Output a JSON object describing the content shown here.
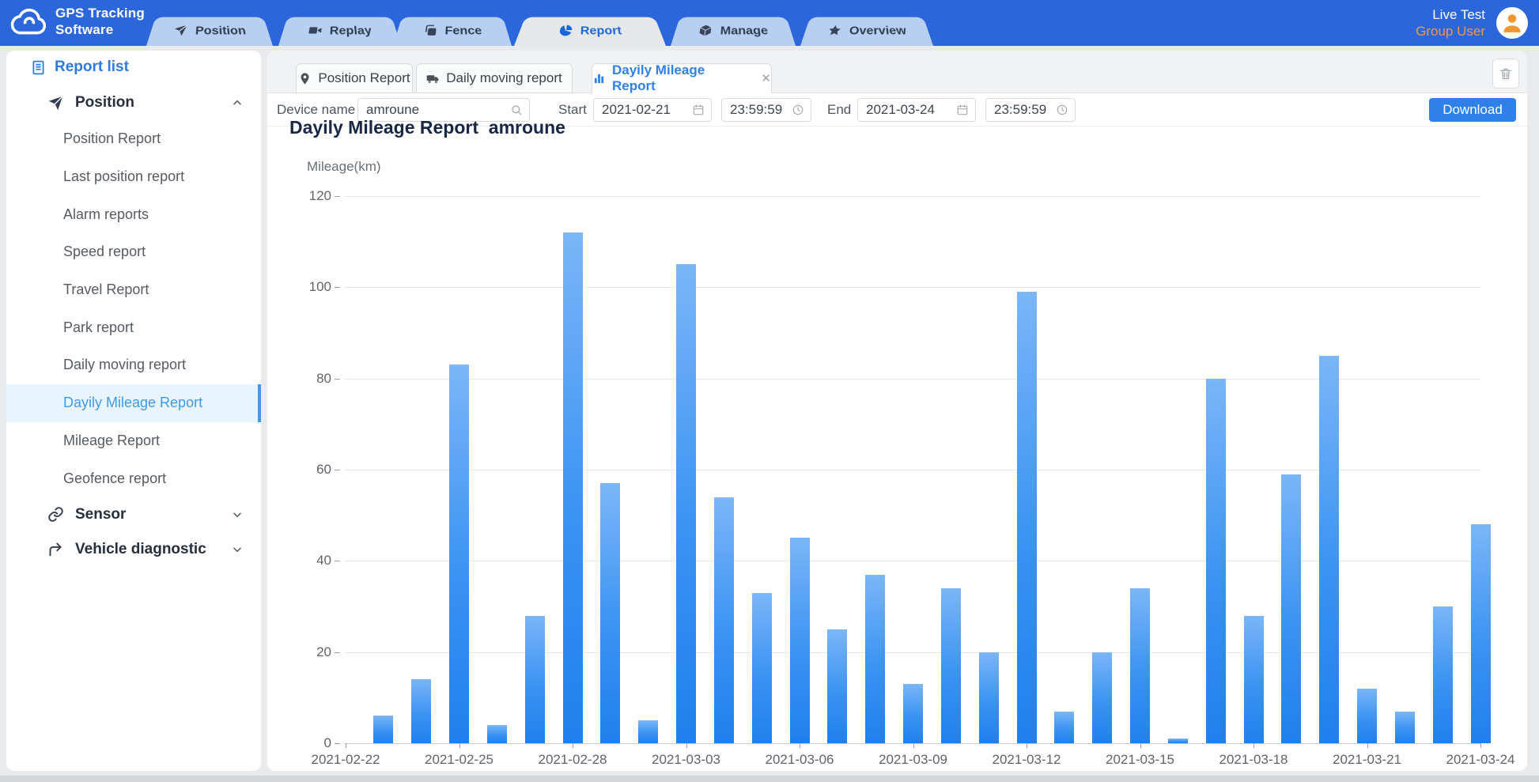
{
  "header": {
    "logo_line1": "GPS Tracking",
    "logo_line2": "Software",
    "nav_tabs": [
      {
        "label": "Position",
        "icon": "send",
        "active": false
      },
      {
        "label": "Replay",
        "icon": "video",
        "active": false
      },
      {
        "label": "Fence",
        "icon": "fence",
        "active": false
      },
      {
        "label": "Report",
        "icon": "pie",
        "active": true
      },
      {
        "label": "Manage",
        "icon": "box",
        "active": false
      },
      {
        "label": "Overview",
        "icon": "star",
        "active": false
      }
    ],
    "user": {
      "name": "Live Test",
      "role": "Group User"
    }
  },
  "sidebar": {
    "title": "Report list",
    "sections": [
      {
        "label": "Position",
        "icon": "send",
        "expanded": true,
        "items": [
          "Position Report",
          "Last position report",
          "Alarm reports",
          "Speed report",
          "Travel Report",
          "Park report",
          "Daily moving report",
          "Dayily Mileage Report",
          "Mileage Report",
          "Geofence report"
        ],
        "selected_item": "Dayily Mileage Report"
      },
      {
        "label": "Sensor",
        "icon": "link",
        "expanded": false,
        "items": []
      },
      {
        "label": "Vehicle diagnostic",
        "icon": "diagnostic",
        "expanded": false,
        "items": []
      }
    ]
  },
  "workspace": {
    "tabs": [
      {
        "label": "Position Report",
        "icon": "pin",
        "active": false,
        "closable": false
      },
      {
        "label": "Daily moving report",
        "icon": "truck",
        "active": false,
        "closable": false
      },
      {
        "label": "Dayily Mileage Report",
        "icon": "bar-chart",
        "active": true,
        "closable": true
      }
    ],
    "close_glyph": "✕",
    "filters": {
      "device_label": "Device name",
      "device_value": "amroune",
      "start_label": "Start",
      "start_date": "2021-02-21",
      "start_time": "23:59:59",
      "end_label": "End",
      "end_date": "2021-03-24",
      "end_time": "23:59:59",
      "download_label": "Download"
    }
  },
  "chart_data": {
    "type": "bar",
    "title": "Dayily Mileage Report  amroune",
    "ylabel": "Mileage(km)",
    "ylim": [
      0,
      120
    ],
    "ytick_step": 20,
    "grid": true,
    "legend": "none",
    "categories": [
      "2021-02-22",
      "2021-02-23",
      "2021-02-24",
      "2021-02-25",
      "2021-02-26",
      "2021-02-27",
      "2021-02-28",
      "2021-03-01",
      "2021-03-02",
      "2021-03-03",
      "2021-03-04",
      "2021-03-05",
      "2021-03-06",
      "2021-03-07",
      "2021-03-08",
      "2021-03-09",
      "2021-03-10",
      "2021-03-11",
      "2021-03-12",
      "2021-03-13",
      "2021-03-14",
      "2021-03-15",
      "2021-03-16",
      "2021-03-17",
      "2021-03-18",
      "2021-03-19",
      "2021-03-20",
      "2021-03-21",
      "2021-03-22",
      "2021-03-23",
      "2021-03-24"
    ],
    "values": [
      0,
      6,
      14,
      83,
      4,
      28,
      112,
      57,
      5,
      105,
      54,
      33,
      45,
      25,
      37,
      13,
      34,
      20,
      99,
      7,
      20,
      34,
      1,
      80,
      28,
      59,
      85,
      12,
      7,
      30,
      48
    ],
    "xtick_labels": [
      "2021-02-22",
      "2021-02-25",
      "2021-02-28",
      "2021-03-03",
      "2021-03-06",
      "2021-03-09",
      "2021-03-12",
      "2021-03-15",
      "2021-03-18",
      "2021-03-21",
      "2021-03-24"
    ],
    "xtick_every": 3
  },
  "colors": {
    "header_bg": "#2c66db",
    "nav_tab_bg": "#b7d0f2",
    "nav_tab_active_bg": "#e6e7e9",
    "accent": "#1b66d8",
    "accent2": "#2e7ae0",
    "accent3": "#2f80e8",
    "sidebar_active_bg": "#e9f5fe",
    "sidebar_active_text": "#3e9af0",
    "download_bg": "#2f80e8",
    "role_orange": "#ee9551",
    "avatar_orange": "#f0962e",
    "bar_top": "#7ab6f8",
    "bar_bottom": "#1f80ee"
  }
}
